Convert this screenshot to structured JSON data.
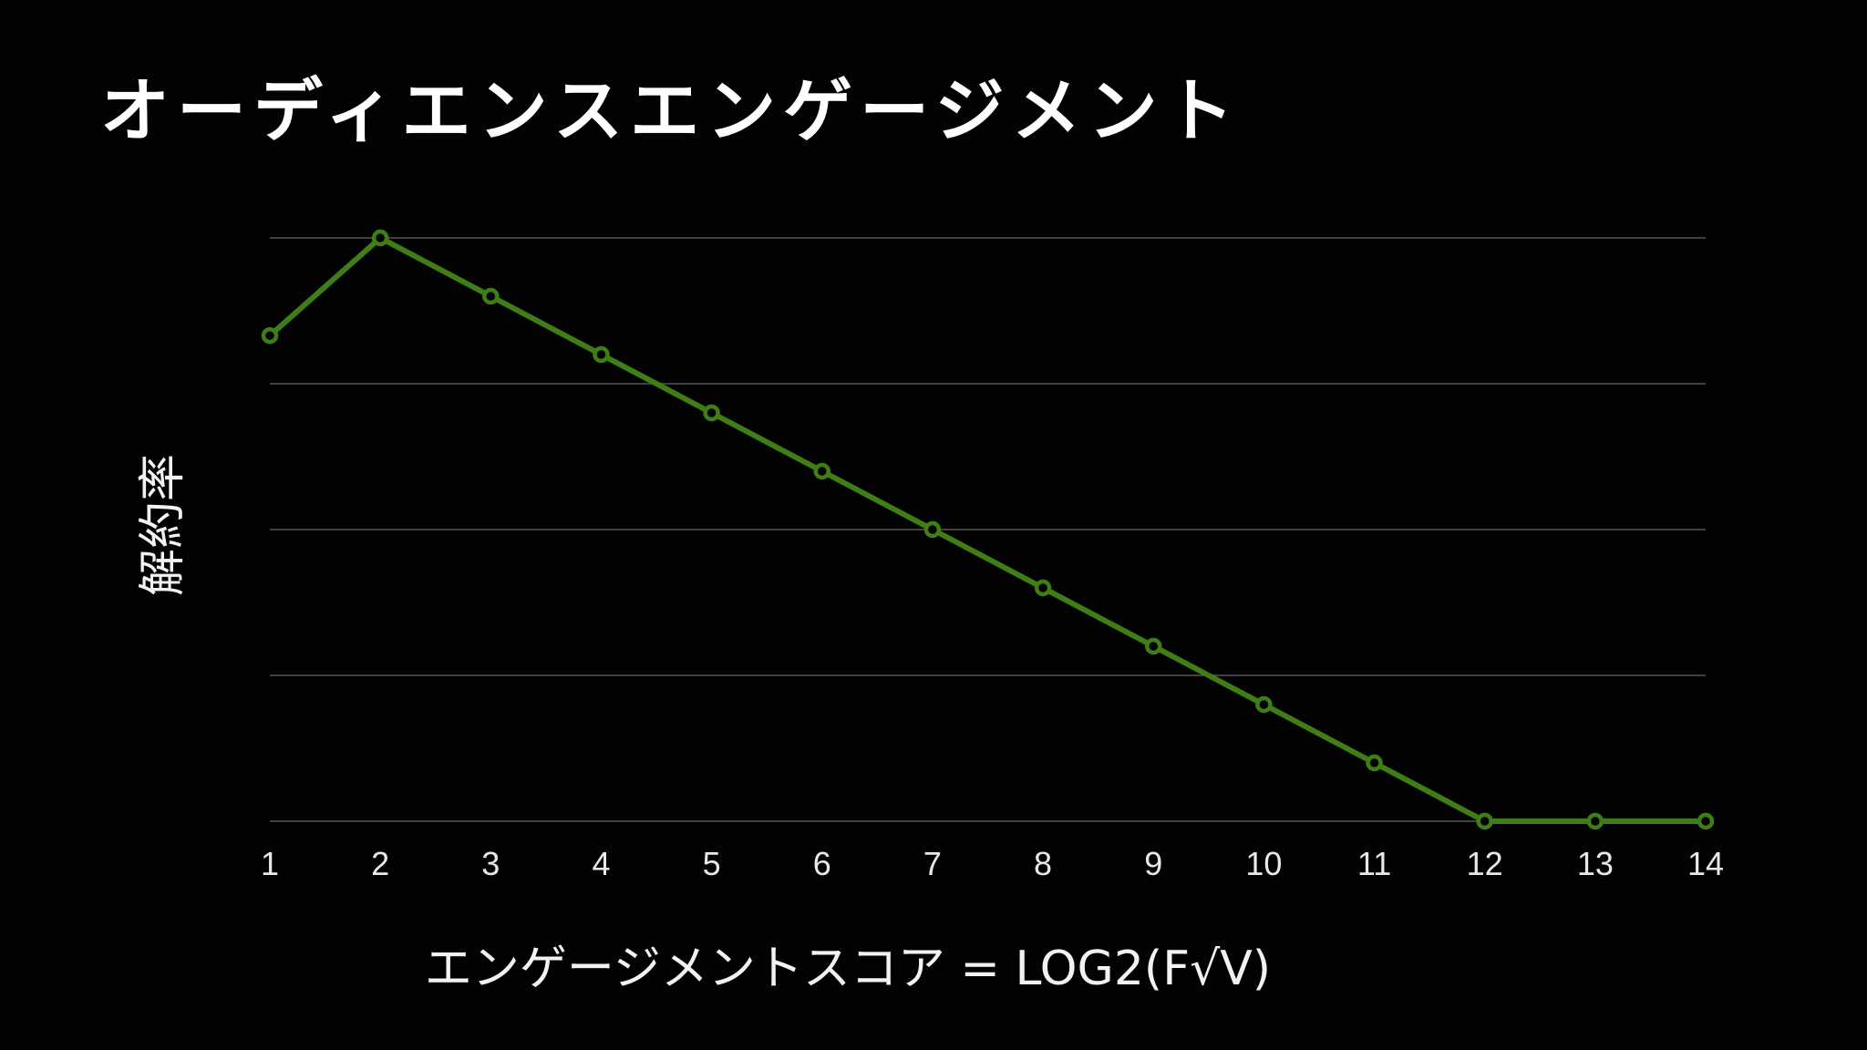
{
  "slide": {
    "title": "オーディエンスエンゲージメント"
  },
  "chart_data": {
    "type": "line",
    "title": "",
    "xlabel": "エンゲージメントスコア = LOG2(F√V)",
    "ylabel": "解約率",
    "x": [
      1,
      2,
      3,
      4,
      5,
      6,
      7,
      8,
      9,
      10,
      11,
      12,
      13,
      14
    ],
    "tick_labels": [
      "1",
      "2",
      "3",
      "4",
      "5",
      "6",
      "7",
      "8",
      "9",
      "10",
      "11",
      "12",
      "13",
      "14"
    ],
    "ylim": [
      0,
      4
    ],
    "grid": true,
    "grid_lines": 5,
    "y_tick_labels_visible": false,
    "series": [
      {
        "values": [
          3.33,
          4.0,
          3.6,
          3.2,
          2.8,
          2.4,
          2.0,
          1.6,
          1.2,
          0.8,
          0.4,
          0.0,
          0.0,
          0.0
        ],
        "color": "#3f7d16",
        "marker": "open-circle"
      }
    ]
  }
}
